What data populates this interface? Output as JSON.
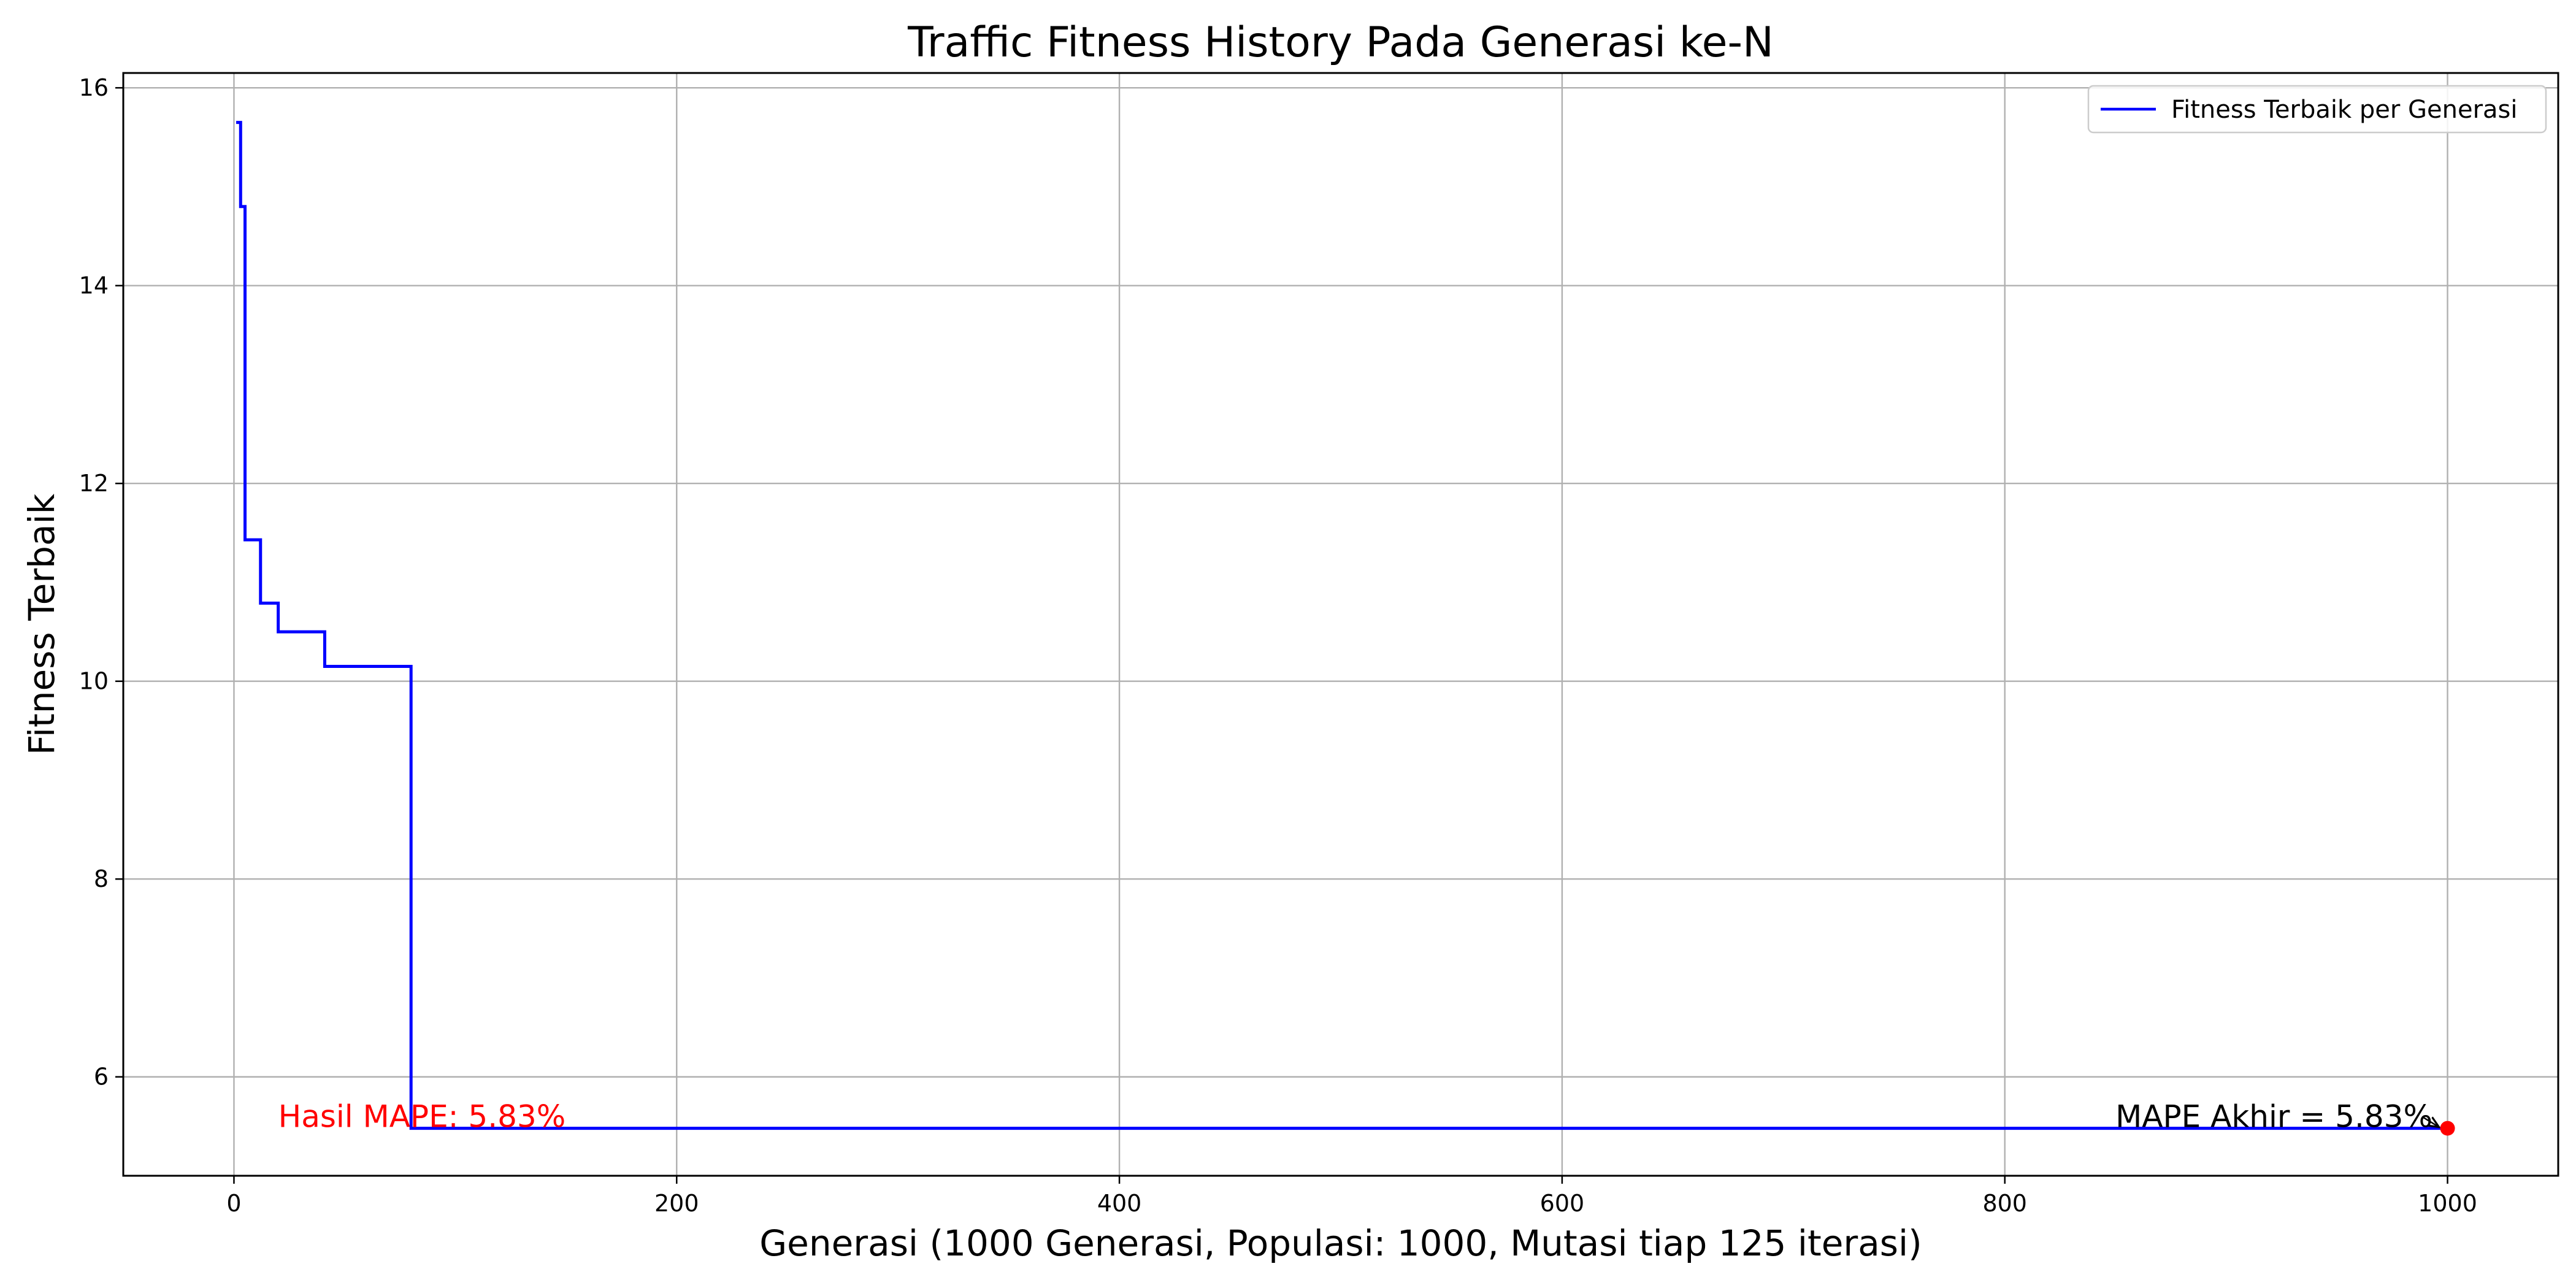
{
  "chart_data": {
    "type": "line",
    "title": "Traffic Fitness History Pada Generasi ke-N",
    "xlabel": "Generasi (1000 Generasi, Populasi: 1000, Mutasi tiap 125 iterasi)",
    "ylabel": "Fitness Terbaik",
    "xlim": [
      -50,
      1050
    ],
    "ylim": [
      5.0,
      16.15
    ],
    "xticks": [
      0,
      200,
      400,
      600,
      800,
      1000
    ],
    "xtick_labels": [
      "0",
      "200",
      "400",
      "600",
      "800",
      "1000"
    ],
    "yticks": [
      6,
      8,
      10,
      12,
      14,
      16
    ],
    "ytick_labels": [
      "6",
      "8",
      "10",
      "12",
      "14",
      "16"
    ],
    "grid": true,
    "legend_position": "top-right",
    "series": [
      {
        "name": "Fitness Terbaik per Generasi",
        "color": "#0000ff",
        "step": true,
        "x": [
          1,
          3,
          5,
          10,
          12,
          18,
          20,
          40,
          41,
          79,
          80,
          1000
        ],
        "y": [
          15.65,
          14.8,
          11.43,
          11.43,
          10.79,
          10.79,
          10.5,
          10.5,
          10.15,
          10.15,
          5.48,
          5.48
        ]
      }
    ],
    "final_point": {
      "x": 1000,
      "y": 5.48,
      "color": "#ff0000"
    },
    "annotations": [
      {
        "name": "hasil-mape",
        "text": "Hasil MAPE: 5.83%",
        "x": 20,
        "y": 5.48,
        "color": "#ff0000"
      },
      {
        "name": "mape-akhir",
        "text": "MAPE Akhir = 5.83%",
        "x": 850,
        "y": 5.48,
        "color": "#000000",
        "arrow_to": [
          1000,
          5.48
        ]
      }
    ]
  }
}
